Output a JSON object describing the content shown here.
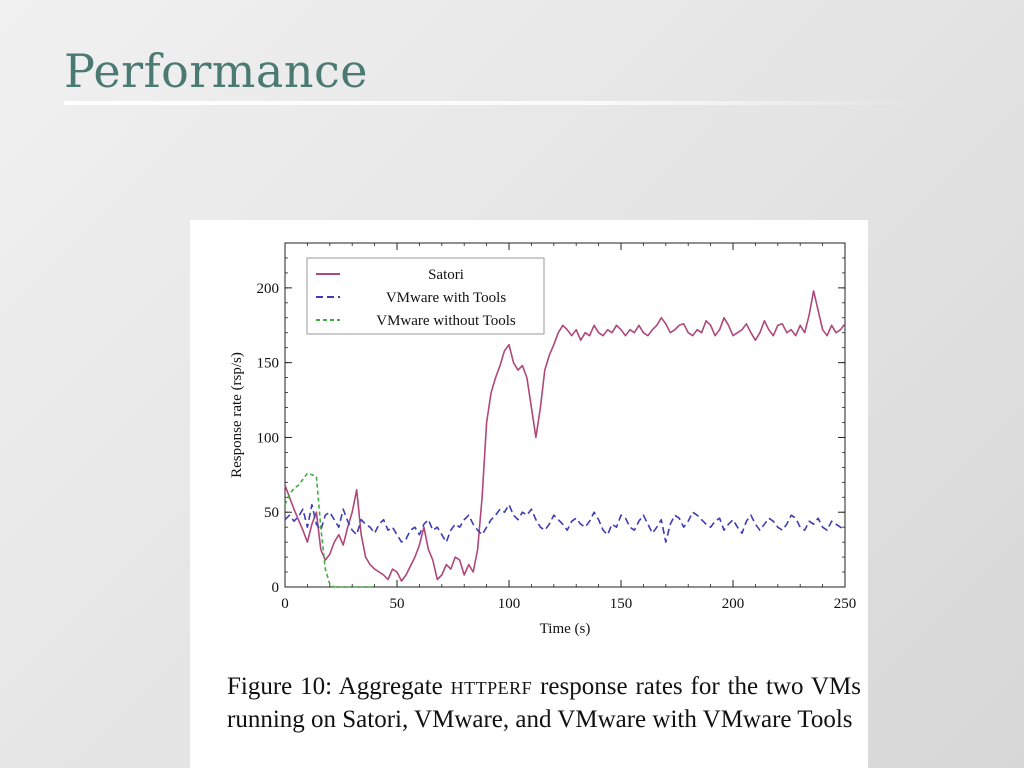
{
  "slide": {
    "title": "Performance"
  },
  "caption": {
    "lead": "Figure 10:  Aggregate ",
    "smallcaps": "httperf",
    "rest": " response rates for the two VMs running on Satori, VMware, and VMware with VMware Tools"
  },
  "colors": {
    "satori": "#b0477a",
    "vmware_tools": "#3c3cb4",
    "vmware_no_tools": "#3fae3f"
  },
  "chart_data": {
    "type": "line",
    "title": "",
    "xlabel": "Time (s)",
    "ylabel": "Response rate (rsp/s)",
    "xlim": [
      0,
      250
    ],
    "ylim": [
      0,
      230
    ],
    "xticks": [
      0,
      50,
      100,
      150,
      200,
      250
    ],
    "yticks": [
      0,
      50,
      100,
      150,
      200
    ],
    "grid": false,
    "legend_position": "top-left",
    "series": [
      {
        "name": "Satori",
        "style": "solid",
        "x": [
          0,
          2,
          4,
          6,
          8,
          10,
          12,
          14,
          16,
          18,
          20,
          22,
          24,
          26,
          28,
          30,
          32,
          34,
          36,
          38,
          40,
          42,
          44,
          46,
          48,
          50,
          52,
          54,
          56,
          58,
          60,
          62,
          64,
          66,
          68,
          70,
          72,
          74,
          76,
          78,
          80,
          82,
          84,
          86,
          88,
          90,
          92,
          94,
          96,
          98,
          100,
          102,
          104,
          106,
          108,
          110,
          112,
          114,
          116,
          118,
          120,
          122,
          124,
          126,
          128,
          130,
          132,
          134,
          136,
          138,
          140,
          142,
          144,
          146,
          148,
          150,
          152,
          154,
          156,
          158,
          160,
          162,
          164,
          166,
          168,
          170,
          172,
          174,
          176,
          178,
          180,
          182,
          184,
          186,
          188,
          190,
          192,
          194,
          196,
          198,
          200,
          202,
          204,
          206,
          208,
          210,
          212,
          214,
          216,
          218,
          220,
          222,
          224,
          226,
          228,
          230,
          232,
          234,
          236,
          238,
          240,
          242,
          244,
          246,
          248,
          250
        ],
        "y": [
          68,
          60,
          52,
          45,
          38,
          30,
          42,
          50,
          25,
          18,
          22,
          30,
          35,
          28,
          40,
          50,
          65,
          35,
          20,
          15,
          12,
          10,
          8,
          5,
          12,
          10,
          4,
          8,
          14,
          20,
          28,
          40,
          25,
          18,
          5,
          8,
          15,
          12,
          20,
          18,
          8,
          15,
          10,
          25,
          60,
          110,
          130,
          140,
          148,
          158,
          162,
          150,
          145,
          148,
          140,
          120,
          100,
          120,
          145,
          155,
          162,
          170,
          175,
          172,
          168,
          172,
          165,
          170,
          168,
          175,
          170,
          168,
          172,
          170,
          175,
          172,
          168,
          172,
          170,
          175,
          170,
          168,
          172,
          175,
          180,
          176,
          170,
          172,
          175,
          176,
          170,
          168,
          172,
          170,
          178,
          175,
          168,
          172,
          180,
          175,
          168,
          170,
          172,
          176,
          170,
          165,
          170,
          178,
          172,
          168,
          175,
          176,
          170,
          172,
          168,
          175,
          170,
          182,
          198,
          185,
          172,
          168,
          175,
          170,
          172,
          176
        ]
      },
      {
        "name": "VMware with Tools",
        "style": "dashed",
        "x": [
          0,
          2,
          4,
          6,
          8,
          10,
          12,
          14,
          16,
          18,
          20,
          22,
          24,
          26,
          28,
          30,
          32,
          34,
          36,
          38,
          40,
          42,
          44,
          46,
          48,
          50,
          52,
          54,
          56,
          58,
          60,
          62,
          64,
          66,
          68,
          70,
          72,
          74,
          76,
          78,
          80,
          82,
          84,
          86,
          88,
          90,
          92,
          94,
          96,
          98,
          100,
          102,
          104,
          106,
          108,
          110,
          112,
          114,
          116,
          118,
          120,
          122,
          124,
          126,
          128,
          130,
          132,
          134,
          136,
          138,
          140,
          142,
          144,
          146,
          148,
          150,
          152,
          154,
          156,
          158,
          160,
          162,
          164,
          166,
          168,
          170,
          172,
          174,
          176,
          178,
          180,
          182,
          184,
          186,
          188,
          190,
          192,
          194,
          196,
          198,
          200,
          202,
          204,
          206,
          208,
          210,
          212,
          214,
          216,
          218,
          220,
          222,
          224,
          226,
          228,
          230,
          232,
          234,
          236,
          238,
          240,
          242,
          244,
          246,
          248,
          250
        ],
        "y": [
          45,
          48,
          44,
          47,
          52,
          40,
          55,
          42,
          38,
          48,
          50,
          45,
          40,
          52,
          44,
          38,
          35,
          45,
          42,
          40,
          36,
          42,
          45,
          38,
          40,
          35,
          30,
          32,
          38,
          40,
          35,
          42,
          45,
          38,
          40,
          35,
          30,
          38,
          42,
          40,
          45,
          48,
          42,
          38,
          35,
          40,
          45,
          48,
          52,
          50,
          55,
          48,
          45,
          50,
          48,
          52,
          45,
          40,
          38,
          42,
          48,
          45,
          42,
          38,
          44,
          46,
          42,
          40,
          44,
          50,
          45,
          38,
          35,
          42,
          40,
          48,
          46,
          40,
          38,
          44,
          48,
          42,
          36,
          40,
          45,
          30,
          42,
          48,
          46,
          40,
          44,
          50,
          48,
          45,
          42,
          40,
          44,
          46,
          38,
          42,
          45,
          40,
          36,
          44,
          48,
          42,
          38,
          42,
          46,
          44,
          40,
          38,
          42,
          48,
          46,
          40,
          38,
          44,
          42,
          46,
          40,
          38,
          44,
          42,
          40,
          38
        ]
      },
      {
        "name": "VMware without Tools",
        "style": "dotted",
        "x": [
          0,
          2,
          4,
          6,
          8,
          10,
          12,
          14,
          16,
          18,
          20,
          22,
          24,
          26,
          28,
          30,
          32,
          34,
          36,
          38,
          40
        ],
        "y": [
          55,
          62,
          66,
          68,
          72,
          76,
          75,
          74,
          40,
          12,
          2,
          0,
          0,
          0,
          0,
          0,
          0,
          0,
          0,
          0,
          0
        ]
      }
    ]
  }
}
